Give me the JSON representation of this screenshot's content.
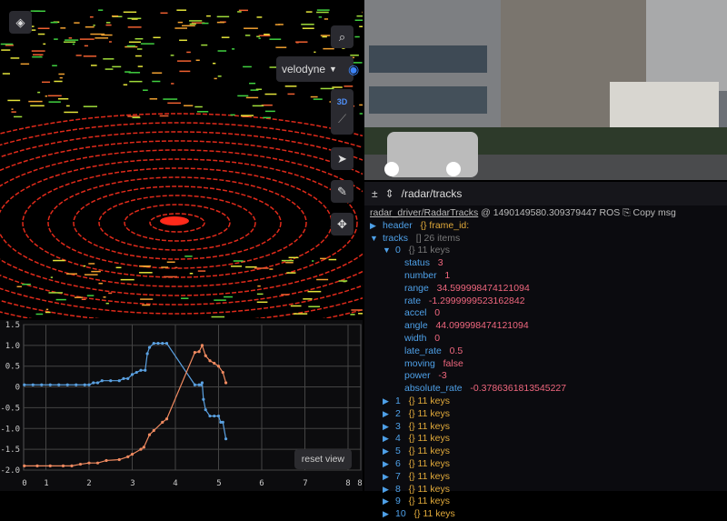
{
  "scene3d": {
    "frame_select": "velodyne",
    "mode_label": "3D",
    "icons": [
      "layers-icon",
      "search-icon",
      "crosshair-icon",
      "ruler-icon",
      "pointer-icon",
      "pencil-icon",
      "move-icon"
    ]
  },
  "raw": {
    "topic": "/radar/tracks",
    "schema": "radar_driver/RadarTracks",
    "stamp": "@ 1490149580.309379447 ROS",
    "copy": "Copy msg",
    "header": {
      "key": "header",
      "type": "{}",
      "summary": "frame_id:"
    },
    "tracks": {
      "key": "tracks",
      "type": "[]",
      "summary": "26 items"
    },
    "track0": {
      "key": "0",
      "type": "{}",
      "summary": "11 keys",
      "fields": [
        {
          "k": "status",
          "v": "3"
        },
        {
          "k": "number",
          "v": "1"
        },
        {
          "k": "range",
          "v": "34.599998474121094"
        },
        {
          "k": "rate",
          "v": "-1.2999999523162842"
        },
        {
          "k": "accel",
          "v": "0"
        },
        {
          "k": "angle",
          "v": "44.099998474121094"
        },
        {
          "k": "width",
          "v": "0"
        },
        {
          "k": "late_rate",
          "v": "0.5"
        },
        {
          "k": "moving",
          "v": "false"
        },
        {
          "k": "power",
          "v": "-3"
        },
        {
          "k": "absolute_rate",
          "v": "-0.3786361813545227"
        }
      ]
    },
    "collapsed": [
      {
        "k": "1",
        "s": "11 keys"
      },
      {
        "k": "2",
        "s": "11 keys"
      },
      {
        "k": "3",
        "s": "11 keys"
      },
      {
        "k": "4",
        "s": "11 keys"
      },
      {
        "k": "5",
        "s": "11 keys"
      },
      {
        "k": "6",
        "s": "11 keys"
      },
      {
        "k": "7",
        "s": "11 keys"
      },
      {
        "k": "8",
        "s": "11 keys"
      },
      {
        "k": "9",
        "s": "11 keys"
      },
      {
        "k": "10",
        "s": "11 keys"
      }
    ]
  },
  "plot": {
    "reset_label": "reset view",
    "chart_data": {
      "type": "line",
      "xlim": [
        0.48,
        8.2
      ],
      "ylim": [
        -2.1,
        1.55
      ],
      "grid": true,
      "xticks": [
        "0",
        "1",
        "2",
        "3",
        "4",
        "5",
        "6",
        "7",
        "8",
        "8"
      ],
      "yticks": [
        "1.5",
        "1.0",
        "0.5",
        "0",
        "-0.5",
        "-1.0",
        "-1.5",
        "-2.0"
      ],
      "series": [
        {
          "color": "#5aa0e0",
          "x": [
            0.5,
            0.7,
            0.9,
            1.1,
            1.3,
            1.5,
            1.7,
            1.9,
            2.0,
            2.1,
            2.2,
            2.3,
            2.5,
            2.7,
            2.8,
            2.9,
            3.0,
            3.1,
            3.2,
            3.3,
            3.35,
            3.4,
            3.5,
            3.6,
            3.7,
            3.8,
            4.45,
            4.55,
            4.6,
            4.62,
            4.65,
            4.7,
            4.8,
            4.9,
            5.0,
            5.05,
            5.1,
            5.17
          ],
          "y": [
            0.05,
            0.05,
            0.05,
            0.05,
            0.05,
            0.05,
            0.05,
            0.05,
            0.05,
            0.1,
            0.1,
            0.15,
            0.15,
            0.15,
            0.2,
            0.2,
            0.3,
            0.35,
            0.4,
            0.4,
            0.8,
            0.95,
            1.05,
            1.05,
            1.05,
            1.05,
            0.05,
            0.05,
            0.05,
            0.1,
            -0.3,
            -0.55,
            -0.7,
            -0.7,
            -0.7,
            -0.85,
            -0.85,
            -1.25
          ]
        },
        {
          "color": "#f08a60",
          "x": [
            0.5,
            0.8,
            1.1,
            1.4,
            1.6,
            1.8,
            2.0,
            2.2,
            2.4,
            2.7,
            2.9,
            3.0,
            3.2,
            3.27,
            3.4,
            3.5,
            3.7,
            3.8,
            4.45,
            4.55,
            4.62,
            4.7,
            4.8,
            4.9,
            5.0,
            5.1,
            5.17
          ],
          "y": [
            -1.9,
            -1.9,
            -1.9,
            -1.9,
            -1.9,
            -1.86,
            -1.83,
            -1.83,
            -1.77,
            -1.75,
            -1.68,
            -1.62,
            -1.5,
            -1.45,
            -1.15,
            -1.05,
            -0.85,
            -0.77,
            0.83,
            0.85,
            1.0,
            0.75,
            0.63,
            0.57,
            0.5,
            0.35,
            0.1
          ]
        }
      ]
    }
  }
}
